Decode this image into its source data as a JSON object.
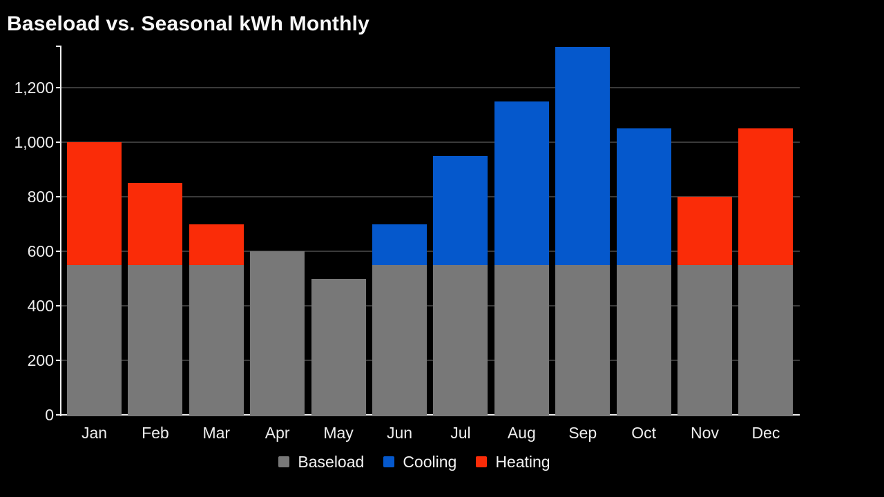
{
  "title": "Baseload vs. Seasonal kWh Monthly",
  "chart_data": {
    "type": "bar",
    "stacked": true,
    "title": "Baseload vs. Seasonal kWh Monthly",
    "xlabel": "",
    "ylabel": "",
    "categories": [
      "Jan",
      "Feb",
      "Mar",
      "Apr",
      "May",
      "Jun",
      "Jul",
      "Aug",
      "Sep",
      "Oct",
      "Nov",
      "Dec"
    ],
    "series": [
      {
        "name": "Baseload",
        "color": "#787878",
        "values": [
          550,
          550,
          550,
          600,
          500,
          550,
          550,
          550,
          550,
          550,
          550,
          550
        ]
      },
      {
        "name": "Cooling",
        "color": "#0558cc",
        "values": [
          0,
          0,
          0,
          0,
          0,
          150,
          400,
          600,
          800,
          500,
          0,
          0
        ]
      },
      {
        "name": "Heating",
        "color": "#fa2c08",
        "values": [
          450,
          300,
          150,
          0,
          0,
          0,
          0,
          0,
          0,
          0,
          250,
          500
        ]
      }
    ],
    "totals": [
      1000,
      850,
      700,
      600,
      500,
      700,
      950,
      1150,
      1350,
      1050,
      800,
      1050
    ],
    "ylim": [
      0,
      1350
    ],
    "yticks": [
      0,
      200,
      400,
      600,
      800,
      1000,
      1200
    ],
    "ytick_labels": [
      "0",
      "200",
      "400",
      "600",
      "800",
      "1,000",
      "1,200"
    ],
    "grid": true,
    "legend_position": "bottom",
    "colors": {
      "background": "#000000",
      "text": "#ededed",
      "grid": "#3a3a3a",
      "axis": "#f0f0f0",
      "title": "#f7f7f7"
    }
  },
  "legend": {
    "items": [
      {
        "label": "Baseload",
        "color": "#787878"
      },
      {
        "label": "Cooling",
        "color": "#0558cc"
      },
      {
        "label": "Heating",
        "color": "#fa2c08"
      }
    ]
  }
}
